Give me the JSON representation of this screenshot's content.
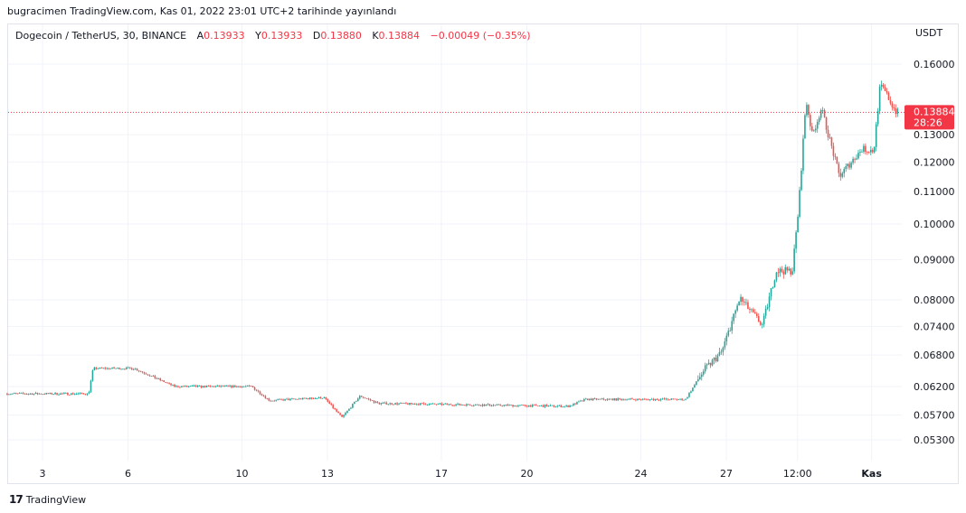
{
  "published": "bugracimen TradingView.com, Kas 01, 2022 23:01 UTC+2 tarihinde yayınlandı",
  "legend": {
    "symbol": "Dogecoin / TetherUS, 30, BINANCE",
    "open_label": "A",
    "open": "0.13933",
    "high_label": "Y",
    "high": "0.13933",
    "low_label": "D",
    "low": "0.13880",
    "close_label": "K",
    "close": "0.13884",
    "change": "−0.00049 (−0.35%)"
  },
  "footer": {
    "brand": "TradingView",
    "logo": "17"
  },
  "colors": {
    "up": "#26a69a",
    "down": "#ef5350",
    "price_tag": "#f23645",
    "grid": "#f0f3fa"
  },
  "chart_data": {
    "type": "candlestick",
    "scale": "log",
    "currency": "USDT",
    "last_price": "0.13884",
    "countdown": "28:26",
    "ylim": [
      0.0495,
      0.172
    ],
    "xlim": [
      1.75,
      33.2
    ],
    "y_ticks": [
      "0.16000",
      "0.13000",
      "0.12000",
      "0.11000",
      "0.10000",
      "0.09000",
      "0.08000",
      "0.07400",
      "0.06800",
      "0.06200",
      "0.05700",
      "0.05300"
    ],
    "x_ticks": [
      {
        "label": "3",
        "day": 3
      },
      {
        "label": "6",
        "day": 6
      },
      {
        "label": "10",
        "day": 10
      },
      {
        "label": "13",
        "day": 13
      },
      {
        "label": "17",
        "day": 17
      },
      {
        "label": "20",
        "day": 20
      },
      {
        "label": "24",
        "day": 24
      },
      {
        "label": "27",
        "day": 27
      },
      {
        "label": "12:00",
        "day": 29.5
      },
      {
        "label": "Kas",
        "day": 32.1
      }
    ],
    "price_path": [
      [
        1.76,
        0.0607
      ],
      [
        4.68,
        0.0607
      ],
      [
        4.84,
        0.0654
      ],
      [
        6.27,
        0.0654
      ],
      [
        7.7,
        0.062
      ],
      [
        10.4,
        0.062
      ],
      [
        11.03,
        0.0595
      ],
      [
        12.94,
        0.06
      ],
      [
        13.57,
        0.0566
      ],
      [
        14.21,
        0.0603
      ],
      [
        14.84,
        0.059
      ],
      [
        21.51,
        0.0585
      ],
      [
        22.14,
        0.0597
      ],
      [
        25.63,
        0.0597
      ],
      [
        26.27,
        0.065
      ],
      [
        26.9,
        0.0686
      ],
      [
        27.54,
        0.0804
      ],
      [
        28.33,
        0.0742
      ],
      [
        28.81,
        0.0871
      ],
      [
        29.38,
        0.0871
      ],
      [
        29.6,
        0.1049
      ],
      [
        29.86,
        0.1443
      ],
      [
        30.08,
        0.1297
      ],
      [
        30.4,
        0.1405
      ],
      [
        31.03,
        0.1151
      ],
      [
        31.83,
        0.1247
      ],
      [
        32.24,
        0.124
      ],
      [
        32.46,
        0.1501
      ],
      [
        32.62,
        0.1477
      ],
      [
        33.03,
        0.1388
      ]
    ]
  }
}
